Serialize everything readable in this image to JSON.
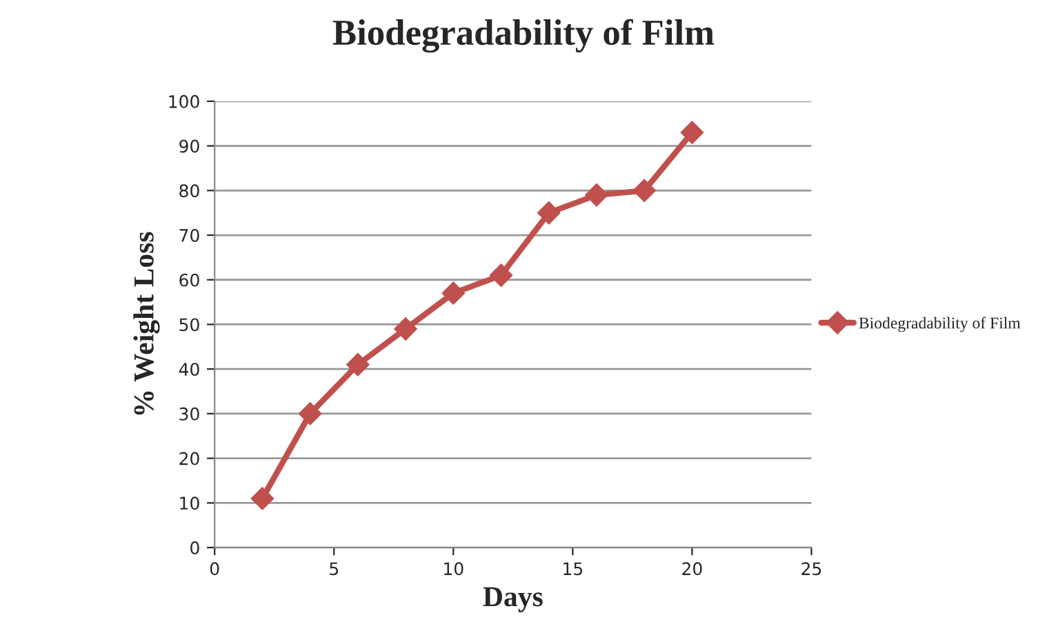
{
  "chart_data": {
    "type": "line",
    "title": "Biodegradability of Film",
    "xlabel": "Days",
    "ylabel": "% Weight Loss",
    "x": [
      2,
      4,
      6,
      8,
      10,
      12,
      14,
      16,
      18,
      20
    ],
    "series": [
      {
        "name": "Biodegradability of Film",
        "color": "#c0504d",
        "values": [
          11,
          30,
          41,
          49,
          57,
          61,
          75,
          79,
          80,
          93
        ]
      }
    ],
    "xlim": [
      0,
      25
    ],
    "xticks": [
      0,
      5,
      10,
      15,
      20,
      25
    ],
    "ylim": [
      0,
      100
    ],
    "yticks": [
      0,
      10,
      20,
      30,
      40,
      50,
      60,
      70,
      80,
      90,
      100
    ],
    "grid": "y",
    "legend": "right",
    "marker": "diamond",
    "line_style": "solid"
  }
}
